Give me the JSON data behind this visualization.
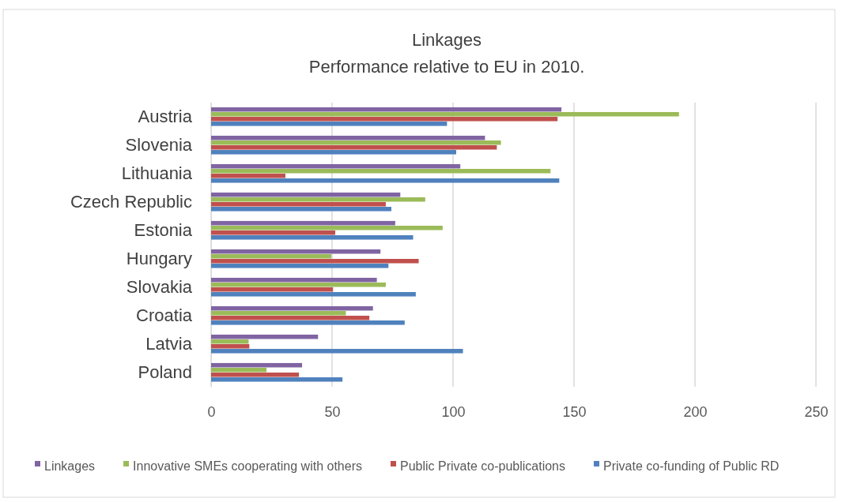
{
  "chart_data": {
    "type": "bar",
    "orientation": "horizontal",
    "title": "Linkages",
    "subtitle": "Performance relative to EU in 2010.",
    "categories": [
      "Austria",
      "Slovenia",
      "Lithuania",
      "Czech Republic",
      "Estonia",
      "Hungary",
      "Slovakia",
      "Croatia",
      "Latvia",
      "Poland"
    ],
    "series": [
      {
        "name": "Linkages",
        "color": "#8064a2",
        "values": [
          144.8,
          113.2,
          103,
          78.2,
          76.1,
          70,
          68.5,
          66.9,
          44.2,
          37.6
        ]
      },
      {
        "name": "Innovative SMEs cooperating with others",
        "color": "#9bbb59",
        "values": [
          193.4,
          119.8,
          140.3,
          88.5,
          95.7,
          49.7,
          72.2,
          55.7,
          15.5,
          22.9
        ]
      },
      {
        "name": "Public Private co-publications",
        "color": "#c0504d",
        "values": [
          143.2,
          118.1,
          30.7,
          72.2,
          51.3,
          85.8,
          50.4,
          65.4,
          15.8,
          36.3
        ]
      },
      {
        "name": "Private co-funding of Public RD",
        "color": "#4f81bd",
        "values": [
          97.5,
          101.3,
          143.9,
          74.5,
          83.5,
          73.3,
          84.6,
          80,
          104.1,
          54.3
        ]
      }
    ],
    "xlim": [
      0,
      250
    ],
    "xticks": [
      0,
      50,
      100,
      150,
      200,
      250
    ],
    "grid": "x",
    "legend": "bottom"
  }
}
